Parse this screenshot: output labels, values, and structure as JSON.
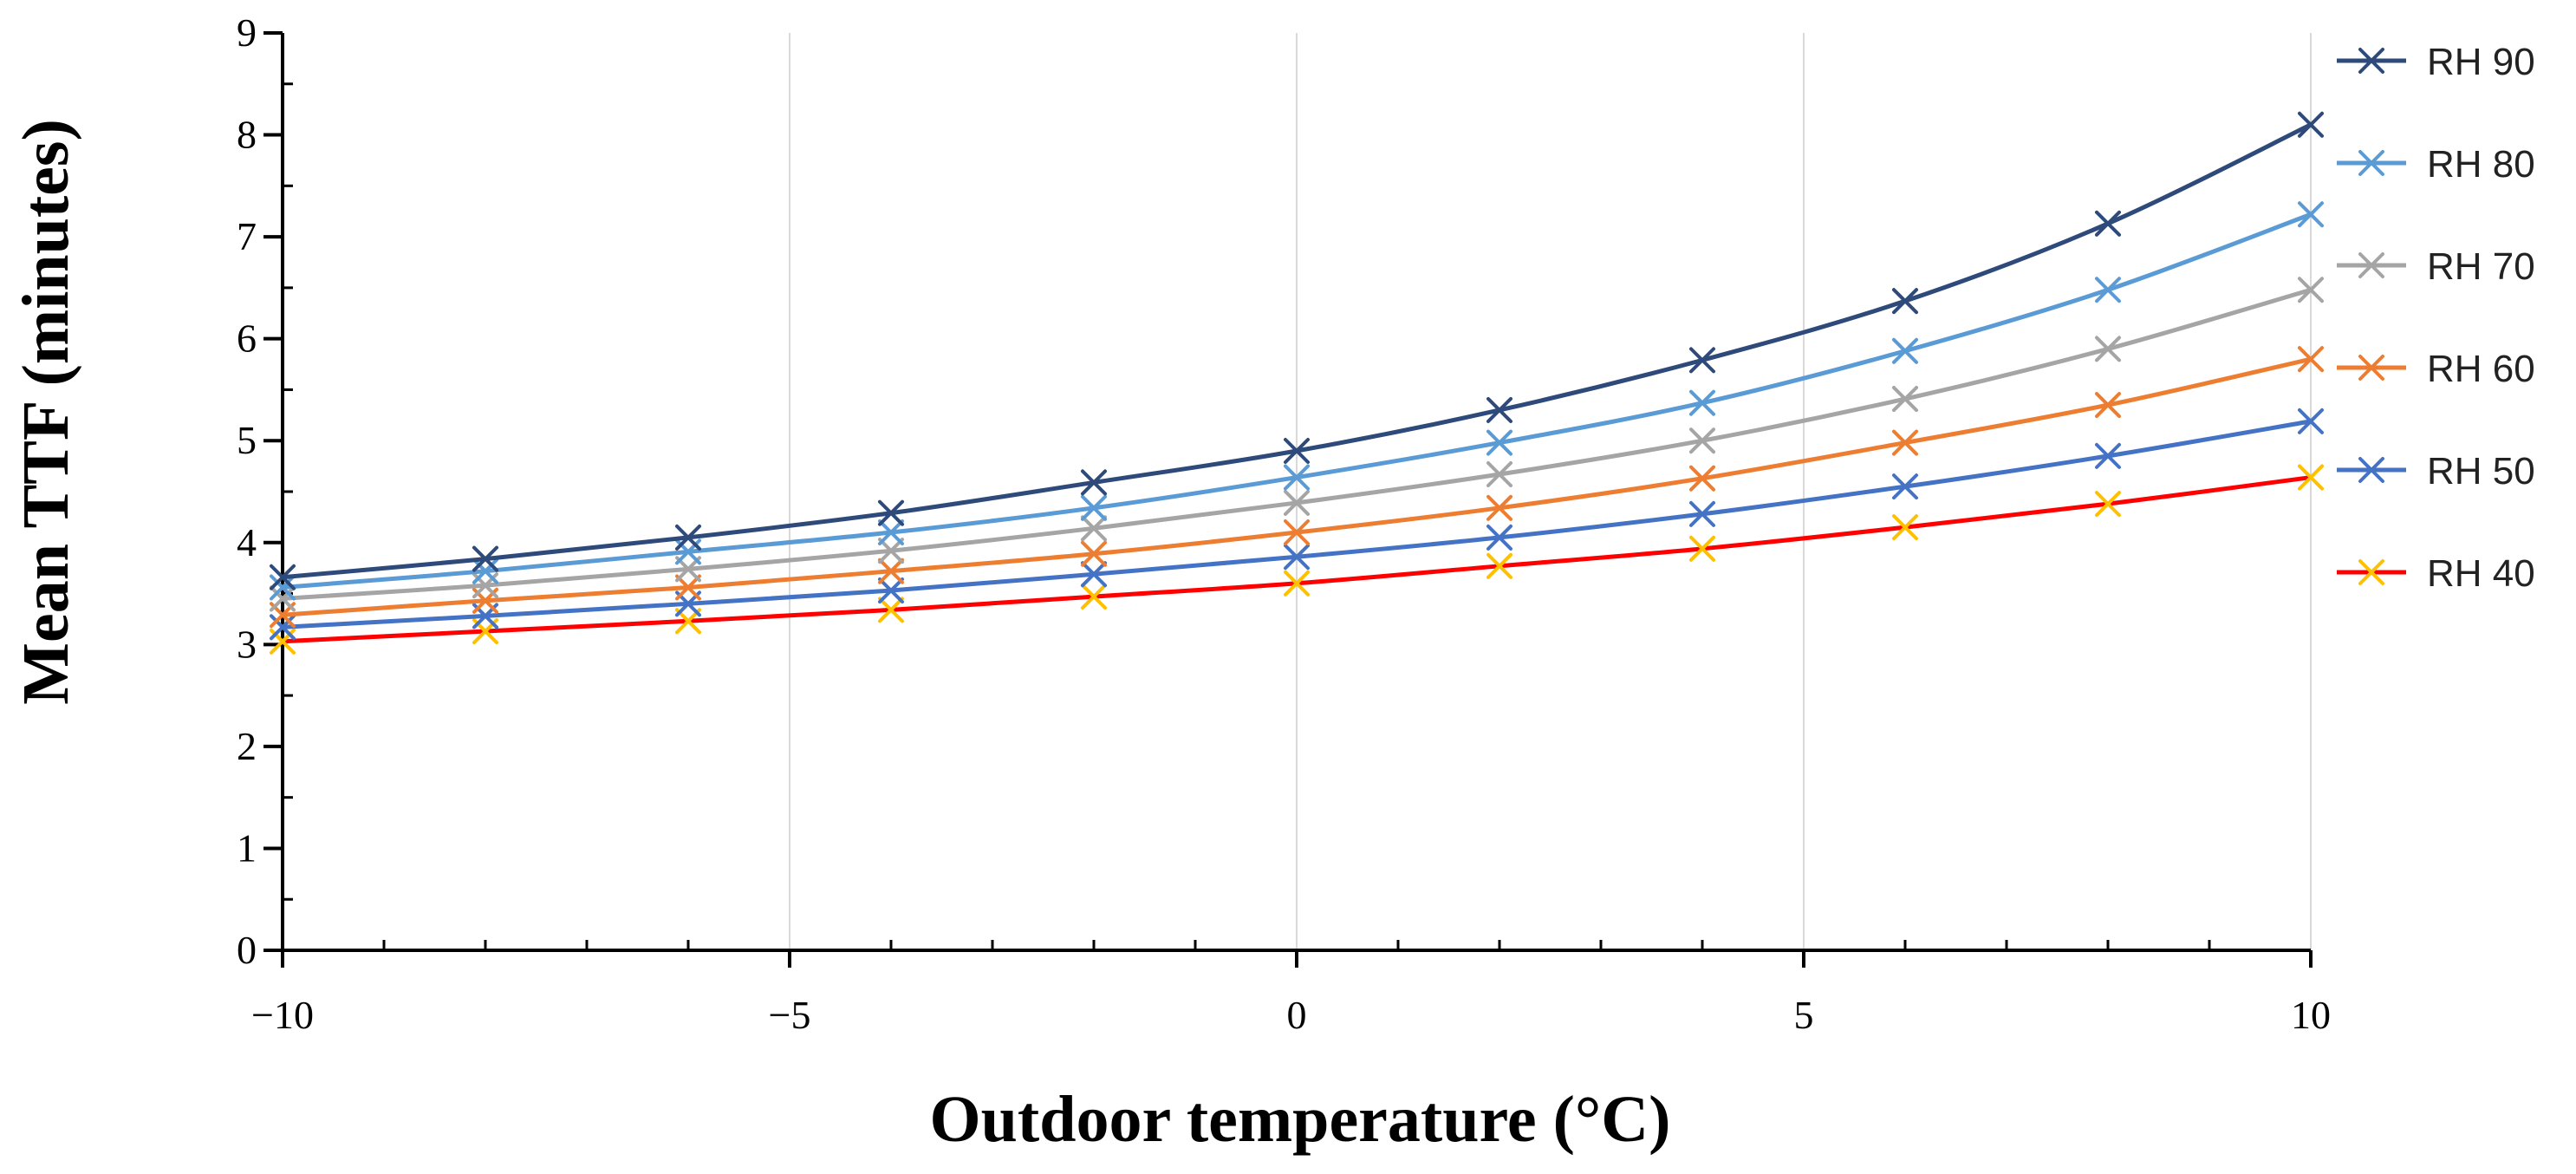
{
  "chart_data": {
    "type": "line",
    "title": "",
    "xlabel": "Outdoor temperature (°C)",
    "ylabel": "Mean TTF (minutes)",
    "xlim": [
      -10,
      10
    ],
    "ylim": [
      0,
      9
    ],
    "xticks": [
      -10,
      -5,
      0,
      5,
      10
    ],
    "xtick_labels": [
      "−10",
      "−5",
      "0",
      "5",
      "10"
    ],
    "yticks": [
      0,
      1,
      2,
      3,
      4,
      5,
      6,
      7,
      8,
      9
    ],
    "ytick_labels": [
      "0",
      "1",
      "2",
      "3",
      "4",
      "5",
      "6",
      "7",
      "8",
      "9"
    ],
    "grid": true,
    "legend_position": "right",
    "x": [
      -10,
      -8,
      -6,
      -4,
      -2,
      0,
      2,
      4,
      6,
      8,
      10
    ],
    "series": [
      {
        "name": "RH 90",
        "color": "#2e4a7a",
        "values": [
          3.66,
          3.84,
          4.05,
          4.29,
          4.59,
          4.9,
          5.3,
          5.79,
          6.37,
          7.13,
          8.1
        ]
      },
      {
        "name": "RH 80",
        "color": "#5b9bd5",
        "values": [
          3.56,
          3.72,
          3.91,
          4.1,
          4.34,
          4.64,
          4.98,
          5.37,
          5.88,
          6.48,
          7.22
        ]
      },
      {
        "name": "RH 70",
        "color": "#a5a5a5",
        "values": [
          3.45,
          3.58,
          3.74,
          3.92,
          4.14,
          4.39,
          4.67,
          5.0,
          5.41,
          5.9,
          6.48
        ]
      },
      {
        "name": "RH 60",
        "color": "#ed7d31",
        "values": [
          3.29,
          3.43,
          3.56,
          3.72,
          3.89,
          4.1,
          4.34,
          4.63,
          4.98,
          5.35,
          5.8
        ]
      },
      {
        "name": "RH 50",
        "color": "#4472c4",
        "values": [
          3.17,
          3.28,
          3.4,
          3.53,
          3.69,
          3.86,
          4.05,
          4.28,
          4.55,
          4.85,
          5.19
        ]
      },
      {
        "name": "RH 40",
        "color": "#ff0000",
        "marker_color": "#ffc000",
        "values": [
          3.03,
          3.13,
          3.23,
          3.34,
          3.47,
          3.6,
          3.77,
          3.94,
          4.15,
          4.38,
          4.64
        ]
      }
    ]
  }
}
